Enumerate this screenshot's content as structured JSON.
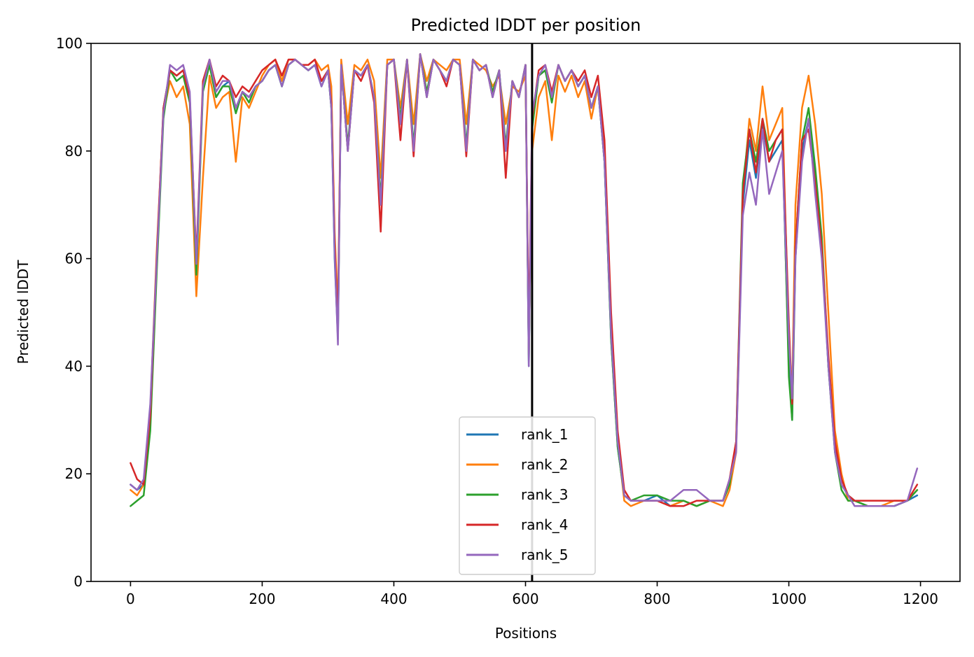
{
  "chart_data": {
    "type": "line",
    "title": "Predicted lDDT per position",
    "xlabel": "Positions",
    "ylabel": "Predicted lDDT",
    "xlim": [
      -60,
      1260
    ],
    "ylim": [
      0,
      100
    ],
    "xticks": [
      0,
      200,
      400,
      600,
      800,
      1000,
      1200
    ],
    "yticks": [
      0,
      20,
      40,
      60,
      80,
      100
    ],
    "grid": false,
    "legend_position": "bottom-center",
    "vline": 610,
    "x": [
      0,
      10,
      20,
      30,
      40,
      50,
      60,
      70,
      80,
      90,
      100,
      110,
      120,
      130,
      140,
      150,
      160,
      170,
      180,
      190,
      200,
      210,
      220,
      230,
      240,
      250,
      260,
      270,
      280,
      290,
      300,
      305,
      310,
      315,
      320,
      330,
      340,
      350,
      360,
      370,
      380,
      390,
      400,
      410,
      420,
      430,
      440,
      450,
      460,
      470,
      480,
      490,
      500,
      510,
      520,
      530,
      540,
      550,
      560,
      570,
      580,
      590,
      600,
      605,
      610,
      620,
      630,
      640,
      650,
      660,
      670,
      680,
      690,
      700,
      710,
      720,
      730,
      740,
      750,
      760,
      780,
      800,
      820,
      840,
      860,
      880,
      900,
      910,
      920,
      930,
      940,
      950,
      960,
      970,
      980,
      990,
      1000,
      1005,
      1010,
      1020,
      1030,
      1040,
      1050,
      1060,
      1070,
      1080,
      1090,
      1100,
      1120,
      1140,
      1160,
      1180,
      1195
    ],
    "series": [
      {
        "name": "rank_1",
        "color": "#1f77b4",
        "values": [
          18,
          17,
          18,
          30,
          60,
          88,
          95,
          94,
          95,
          90,
          58,
          92,
          96,
          90,
          92,
          93,
          88,
          91,
          90,
          92,
          93,
          95,
          96,
          92,
          96,
          97,
          96,
          95,
          96,
          92,
          95,
          88,
          60,
          45,
          96,
          80,
          95,
          94,
          96,
          90,
          70,
          96,
          97,
          85,
          97,
          80,
          98,
          90,
          97,
          95,
          93,
          97,
          96,
          80,
          97,
          95,
          96,
          90,
          95,
          80,
          93,
          90,
          96,
          40,
          85,
          94,
          95,
          90,
          96,
          93,
          95,
          92,
          94,
          88,
          92,
          78,
          45,
          25,
          16,
          15,
          15,
          16,
          14,
          15,
          14,
          15,
          15,
          18,
          25,
          70,
          82,
          75,
          85,
          78,
          80,
          82,
          40,
          30,
          60,
          80,
          86,
          75,
          62,
          40,
          25,
          18,
          16,
          15,
          14,
          14,
          14,
          15,
          16
        ]
      },
      {
        "name": "rank_2",
        "color": "#ff7f0e",
        "values": [
          17,
          16,
          18,
          32,
          62,
          87,
          93,
          90,
          92,
          85,
          53,
          75,
          94,
          88,
          90,
          91,
          78,
          90,
          88,
          91,
          94,
          96,
          97,
          93,
          97,
          97,
          96,
          96,
          97,
          95,
          96,
          92,
          65,
          50,
          97,
          85,
          96,
          95,
          97,
          93,
          75,
          97,
          97,
          88,
          97,
          85,
          98,
          93,
          97,
          96,
          95,
          97,
          97,
          85,
          97,
          96,
          95,
          92,
          94,
          85,
          92,
          91,
          94,
          42,
          80,
          90,
          93,
          82,
          94,
          91,
          94,
          90,
          93,
          86,
          92,
          80,
          48,
          26,
          15,
          14,
          15,
          15,
          14,
          15,
          14,
          15,
          14,
          17,
          24,
          72,
          86,
          80,
          92,
          82,
          85,
          88,
          45,
          35,
          70,
          88,
          94,
          85,
          72,
          50,
          28,
          20,
          15,
          15,
          14,
          14,
          15,
          15,
          17
        ]
      },
      {
        "name": "rank_3",
        "color": "#2ca02c",
        "values": [
          14,
          15,
          16,
          28,
          58,
          86,
          95,
          93,
          94,
          89,
          57,
          91,
          96,
          90,
          92,
          92,
          87,
          91,
          89,
          92,
          93,
          95,
          96,
          92,
          96,
          97,
          96,
          95,
          96,
          93,
          95,
          88,
          62,
          46,
          96,
          81,
          95,
          94,
          96,
          90,
          71,
          96,
          97,
          86,
          97,
          81,
          98,
          91,
          97,
          95,
          93,
          97,
          96,
          81,
          97,
          95,
          96,
          91,
          95,
          81,
          93,
          90,
          96,
          41,
          84,
          94,
          95,
          89,
          96,
          93,
          95,
          92,
          94,
          88,
          92,
          78,
          45,
          25,
          16,
          15,
          16,
          16,
          15,
          15,
          14,
          15,
          15,
          18,
          26,
          74,
          84,
          78,
          86,
          80,
          82,
          84,
          38,
          30,
          62,
          82,
          88,
          77,
          64,
          40,
          24,
          17,
          15,
          15,
          14,
          14,
          14,
          15,
          17
        ]
      },
      {
        "name": "rank_4",
        "color": "#d62728",
        "values": [
          22,
          19,
          18,
          31,
          61,
          88,
          95,
          94,
          95,
          90,
          60,
          93,
          97,
          92,
          94,
          93,
          90,
          92,
          91,
          93,
          95,
          96,
          97,
          94,
          97,
          97,
          96,
          96,
          97,
          93,
          95,
          89,
          63,
          47,
          96,
          80,
          95,
          93,
          96,
          89,
          65,
          96,
          97,
          82,
          97,
          79,
          98,
          90,
          97,
          95,
          92,
          97,
          96,
          79,
          97,
          95,
          96,
          90,
          95,
          75,
          93,
          90,
          96,
          45,
          86,
          95,
          96,
          91,
          96,
          93,
          95,
          93,
          95,
          90,
          94,
          82,
          50,
          28,
          17,
          15,
          15,
          15,
          14,
          14,
          15,
          15,
          15,
          19,
          26,
          72,
          84,
          76,
          86,
          78,
          82,
          84,
          48,
          33,
          62,
          82,
          84,
          74,
          62,
          42,
          26,
          19,
          16,
          15,
          15,
          15,
          15,
          15,
          18
        ]
      },
      {
        "name": "rank_5",
        "color": "#9467bd",
        "values": [
          18,
          17,
          19,
          33,
          60,
          87,
          96,
          95,
          96,
          91,
          59,
          92,
          97,
          91,
          93,
          93,
          88,
          91,
          90,
          92,
          93,
          95,
          96,
          92,
          96,
          97,
          96,
          95,
          96,
          92,
          95,
          88,
          61,
          44,
          96,
          80,
          95,
          94,
          96,
          90,
          70,
          96,
          97,
          85,
          97,
          80,
          98,
          90,
          97,
          95,
          93,
          97,
          96,
          80,
          97,
          95,
          96,
          90,
          95,
          80,
          93,
          90,
          96,
          40,
          87,
          94,
          96,
          90,
          96,
          93,
          95,
          92,
          94,
          88,
          92,
          78,
          46,
          26,
          16,
          15,
          15,
          15,
          15,
          17,
          17,
          15,
          15,
          19,
          24,
          68,
          76,
          70,
          84,
          72,
          76,
          80,
          45,
          34,
          60,
          78,
          86,
          72,
          60,
          40,
          24,
          18,
          16,
          14,
          14,
          14,
          14,
          15,
          21
        ]
      }
    ]
  }
}
